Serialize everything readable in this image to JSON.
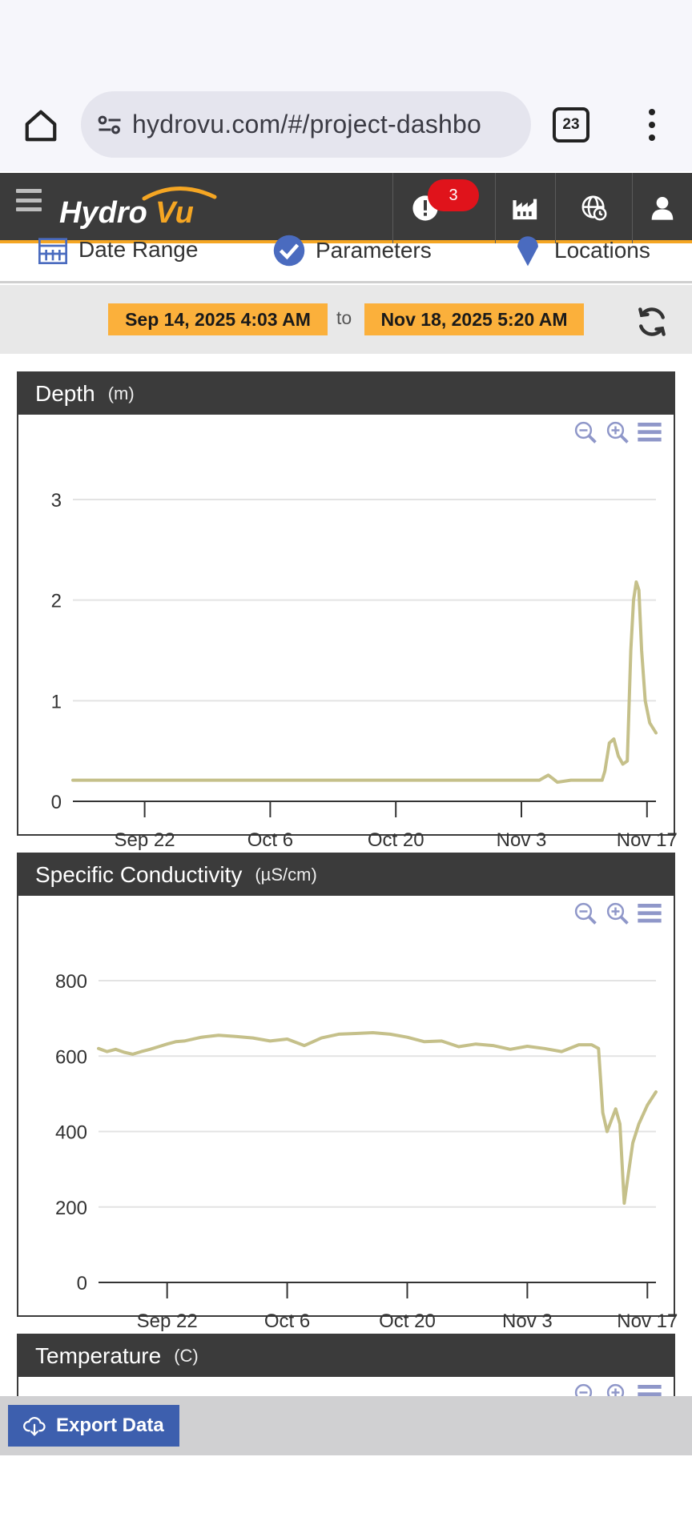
{
  "browser": {
    "url": "hydrovu.com/#/project-dashbo",
    "tab_count": "23"
  },
  "app": {
    "logo_text_a": "Hydro",
    "logo_text_b": "Vu",
    "alerts_count": "3"
  },
  "filters": {
    "date_range_label": "Date Range",
    "parameters_label": "Parameters",
    "locations_label": "Locations"
  },
  "range": {
    "start": "Sep 14, 2025 4:03 AM",
    "to": "to",
    "end": "Nov 18, 2025 5:20 AM"
  },
  "colors": {
    "accent": "#f5a623",
    "date_chip": "#fbb03b",
    "header_bg": "#3b3b3b",
    "series_line": "#c5c08a",
    "badge": "#e0131b",
    "export_button": "#3d5fae"
  },
  "panels": [
    {
      "title": "Depth",
      "unit": "(m)"
    },
    {
      "title": "Specific Conductivity",
      "unit": "(µS/cm)"
    },
    {
      "title": "Temperature",
      "unit": "(C)"
    }
  ],
  "export": {
    "label": "Export Data"
  },
  "chart_data": [
    {
      "type": "line",
      "title": "Depth",
      "ylabel": "(m)",
      "ylim": [
        0,
        3
      ],
      "yticks": [
        "0",
        "1",
        "2",
        "3"
      ],
      "xticks": [
        "Sep 22",
        "Oct 6",
        "Oct 20",
        "Nov 3",
        "Nov 17"
      ],
      "xtick_days": [
        8,
        22,
        36,
        50,
        64
      ],
      "xlim_days": [
        0,
        65
      ],
      "grid": true,
      "series": [
        {
          "x_days": [
            0,
            4,
            8,
            12,
            16,
            20,
            24,
            28,
            32,
            36,
            40,
            44,
            48,
            52,
            53.0,
            53.6,
            54.0,
            55.5,
            57.0,
            59.0,
            59.3,
            59.8,
            60.3,
            60.8,
            61.3,
            61.8,
            62.2,
            62.5,
            62.8,
            63.1,
            63.4,
            63.8,
            64.3,
            65.0
          ],
          "values": [
            0.21,
            0.21,
            0.21,
            0.21,
            0.21,
            0.21,
            0.21,
            0.21,
            0.21,
            0.21,
            0.21,
            0.21,
            0.21,
            0.21,
            0.26,
            0.22,
            0.19,
            0.21,
            0.21,
            0.21,
            0.3,
            0.58,
            0.62,
            0.45,
            0.37,
            0.4,
            1.5,
            2.0,
            2.18,
            2.1,
            1.5,
            1.0,
            0.78,
            0.68
          ]
        }
      ]
    },
    {
      "type": "line",
      "title": "Specific Conductivity",
      "ylabel": "(µS/cm)",
      "ylim": [
        0,
        800
      ],
      "yticks": [
        "0",
        "200",
        "400",
        "600",
        "800"
      ],
      "xticks": [
        "Sep 22",
        "Oct 6",
        "Oct 20",
        "Nov 3",
        "Nov 17"
      ],
      "xtick_days": [
        8,
        22,
        36,
        50,
        64
      ],
      "xlim_days": [
        0,
        65
      ],
      "grid": true,
      "series": [
        {
          "x_days": [
            0,
            1,
            2,
            3,
            4,
            5,
            6,
            7,
            8,
            9,
            10,
            12,
            14,
            16,
            18,
            20,
            22,
            24,
            26,
            28,
            30,
            32,
            34,
            36,
            38,
            40,
            42,
            44,
            46,
            48,
            50,
            52,
            54,
            56,
            57.5,
            58.3,
            58.8,
            59.3,
            59.8,
            60.3,
            60.8,
            61.3,
            61.8,
            62.3,
            63.0,
            64.0,
            65.0
          ],
          "values": [
            620,
            612,
            618,
            610,
            605,
            612,
            618,
            625,
            632,
            638,
            640,
            650,
            655,
            652,
            648,
            640,
            645,
            628,
            648,
            658,
            660,
            662,
            658,
            650,
            638,
            640,
            625,
            632,
            628,
            618,
            626,
            620,
            612,
            630,
            630,
            620,
            450,
            400,
            430,
            460,
            420,
            210,
            290,
            370,
            420,
            470,
            505
          ]
        }
      ]
    }
  ]
}
